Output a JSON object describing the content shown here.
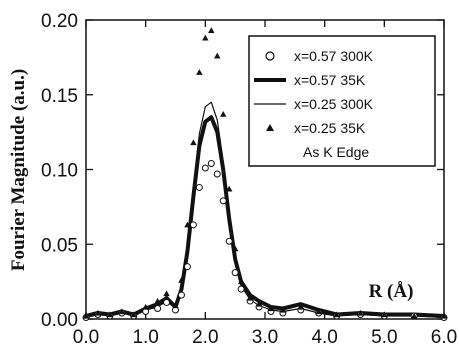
{
  "chart_data": {
    "type": "line",
    "title": "",
    "xlabel": "R (Å)",
    "ylabel": "Fourier  Magnitude  (a.u.)",
    "xlim": [
      0.0,
      6.0
    ],
    "ylim": [
      0.0,
      0.2
    ],
    "x_ticks": [
      "0.0",
      "1.0",
      "2.0",
      "3.0",
      "4.0",
      "5.0",
      "6.0"
    ],
    "y_ticks": [
      "0.00",
      "0.05",
      "0.10",
      "0.15",
      "0.20"
    ],
    "grid": false,
    "legend_position": "top-right",
    "annotation": "As K Edge",
    "series": [
      {
        "name": "x=0.57  300K",
        "style": "open-circles",
        "x": [
          0.0,
          0.2,
          0.4,
          0.6,
          0.8,
          1.0,
          1.2,
          1.35,
          1.5,
          1.6,
          1.7,
          1.8,
          1.9,
          2.0,
          2.1,
          2.2,
          2.3,
          2.4,
          2.5,
          2.6,
          2.75,
          2.9,
          3.1,
          3.3,
          3.6,
          3.9,
          4.2,
          4.6,
          5.0,
          5.5,
          6.0
        ],
        "y": [
          0.001,
          0.003,
          0.002,
          0.004,
          0.002,
          0.005,
          0.007,
          0.011,
          0.006,
          0.016,
          0.035,
          0.063,
          0.088,
          0.101,
          0.104,
          0.097,
          0.079,
          0.052,
          0.031,
          0.02,
          0.012,
          0.008,
          0.005,
          0.004,
          0.006,
          0.004,
          0.002,
          0.003,
          0.002,
          0.002,
          0.001
        ]
      },
      {
        "name": "x=0.57  35K",
        "style": "thick-line",
        "x": [
          0.0,
          0.2,
          0.4,
          0.6,
          0.8,
          1.0,
          1.2,
          1.35,
          1.5,
          1.6,
          1.7,
          1.8,
          1.9,
          2.0,
          2.1,
          2.2,
          2.3,
          2.4,
          2.5,
          2.6,
          2.75,
          2.9,
          3.1,
          3.3,
          3.6,
          3.9,
          4.2,
          4.6,
          5.0,
          5.5,
          6.0
        ],
        "y": [
          0.002,
          0.004,
          0.003,
          0.005,
          0.003,
          0.007,
          0.01,
          0.014,
          0.008,
          0.02,
          0.045,
          0.082,
          0.116,
          0.132,
          0.135,
          0.125,
          0.1,
          0.067,
          0.04,
          0.025,
          0.016,
          0.012,
          0.008,
          0.007,
          0.01,
          0.006,
          0.003,
          0.004,
          0.003,
          0.003,
          0.002
        ]
      },
      {
        "name": "x=0.25  300K",
        "style": "thin-line",
        "x": [
          0.0,
          0.2,
          0.4,
          0.6,
          0.8,
          1.0,
          1.2,
          1.35,
          1.5,
          1.6,
          1.7,
          1.8,
          1.9,
          2.0,
          2.1,
          2.2,
          2.3,
          2.4,
          2.5,
          2.6,
          2.75,
          2.9,
          3.1,
          3.3,
          3.6,
          3.9,
          4.2,
          4.6,
          5.0,
          5.5,
          6.0
        ],
        "y": [
          0.001,
          0.003,
          0.002,
          0.004,
          0.002,
          0.006,
          0.008,
          0.012,
          0.007,
          0.02,
          0.048,
          0.088,
          0.124,
          0.142,
          0.145,
          0.133,
          0.105,
          0.068,
          0.038,
          0.022,
          0.013,
          0.009,
          0.006,
          0.005,
          0.007,
          0.004,
          0.002,
          0.003,
          0.002,
          0.002,
          0.001
        ]
      },
      {
        "name": "x=0.25  35K",
        "style": "filled-triangles",
        "x": [
          0.0,
          0.2,
          0.4,
          0.6,
          0.8,
          1.0,
          1.2,
          1.35,
          1.5,
          1.6,
          1.7,
          1.8,
          1.9,
          2.0,
          2.1,
          2.2,
          2.3,
          2.4,
          2.5,
          2.6,
          2.75,
          2.9,
          3.1,
          3.3,
          3.6,
          3.9,
          4.2,
          4.6,
          5.0,
          5.5,
          6.0
        ],
        "y": [
          0.002,
          0.004,
          0.003,
          0.005,
          0.003,
          0.008,
          0.012,
          0.017,
          0.009,
          0.026,
          0.063,
          0.118,
          0.165,
          0.188,
          0.193,
          0.176,
          0.137,
          0.087,
          0.047,
          0.025,
          0.014,
          0.01,
          0.007,
          0.006,
          0.008,
          0.005,
          0.003,
          0.004,
          0.003,
          0.002,
          0.002
        ]
      }
    ]
  }
}
